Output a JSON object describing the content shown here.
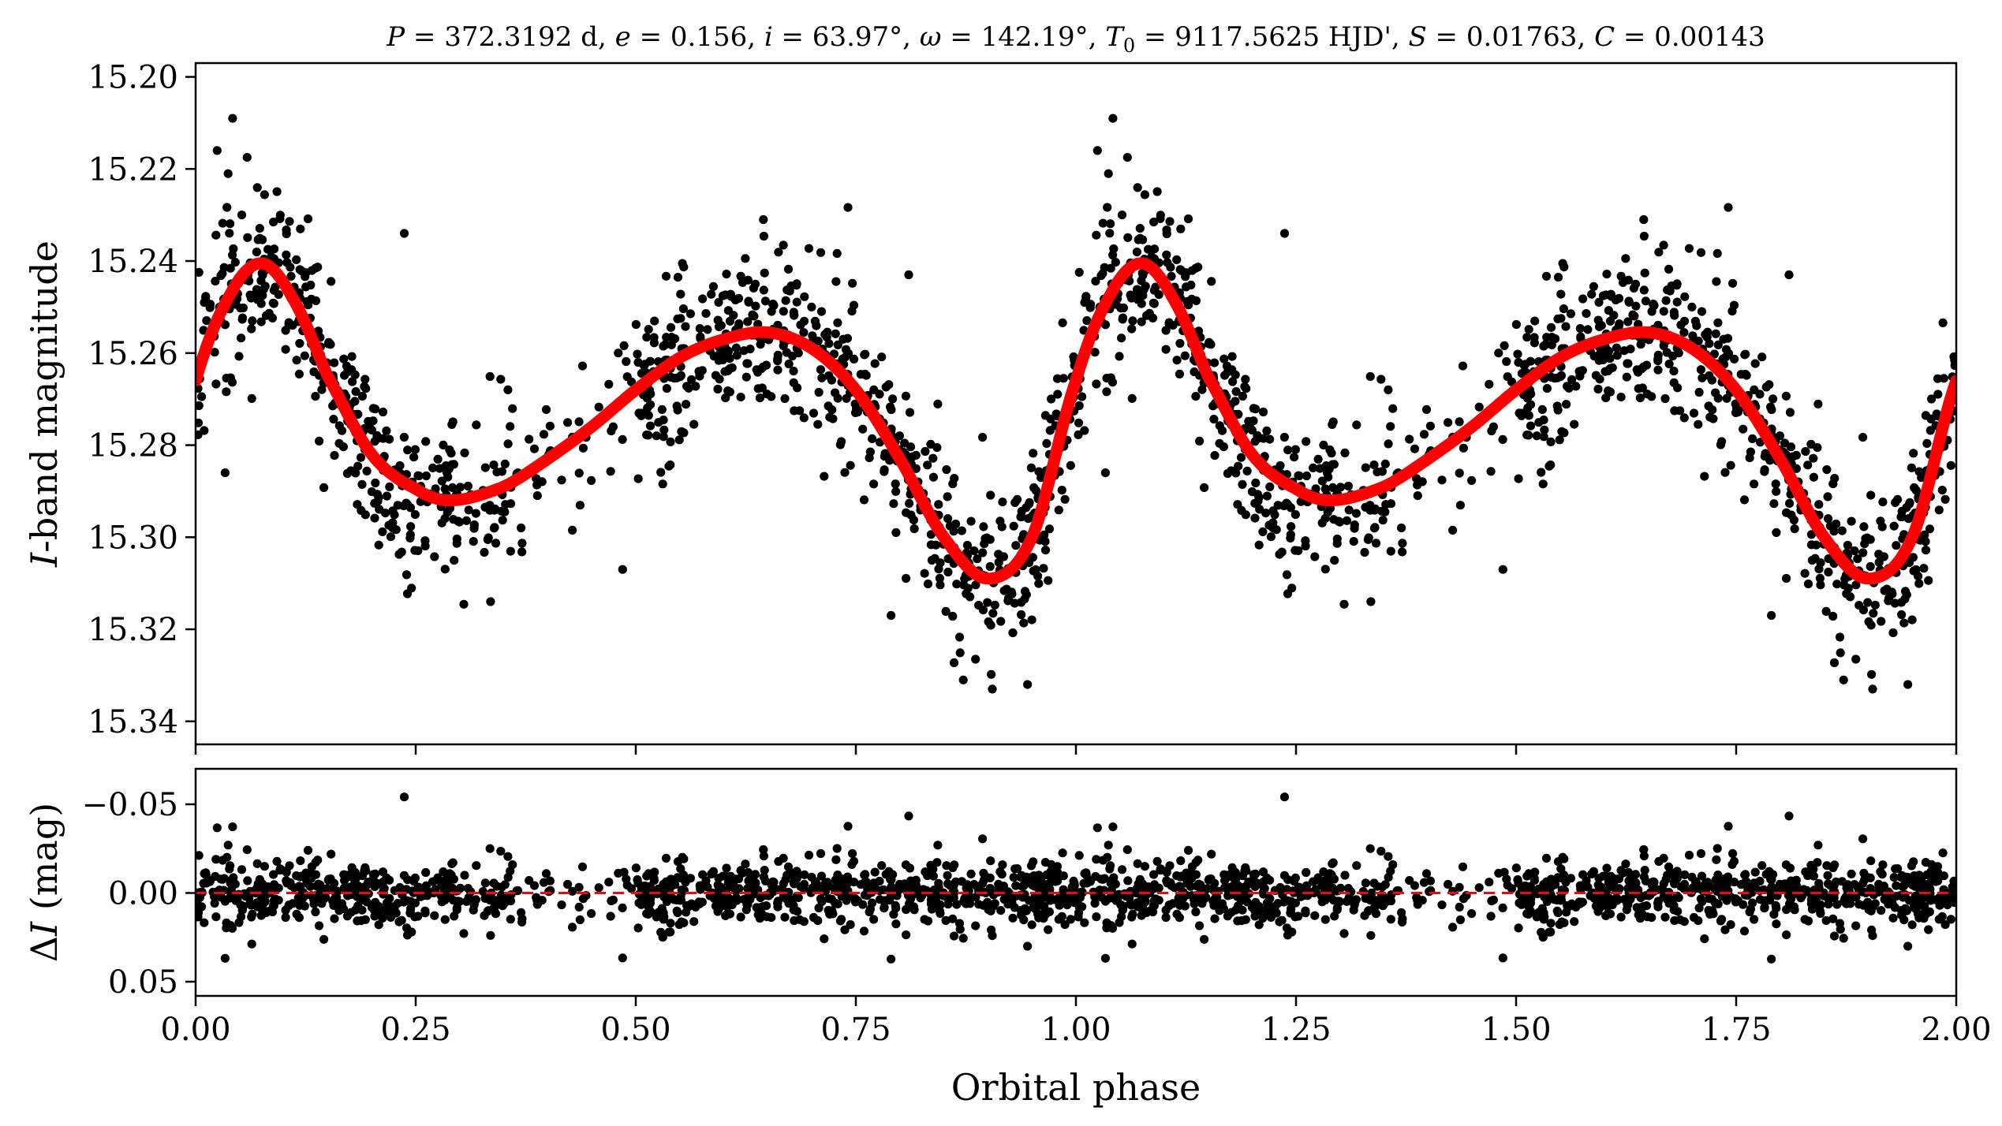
{
  "chart_data": [
    {
      "panel": "top",
      "type": "scatter",
      "title": "P = 372.3192 d, e = 0.156, i = 63.97°, ω = 142.19°, T0 = 9117.5625 HJD', S = 0.01763, C = 0.00143",
      "title_parts": [
        "P",
        " = 372.3192 d, ",
        "e",
        " = 0.156, ",
        "i",
        " = 63.97°, ",
        "ω",
        " = 142.19°, ",
        "T",
        "0",
        " = 9117.5625 HJD', ",
        "S",
        " = 0.01763, ",
        "C",
        " = 0.00143"
      ],
      "ylabel": "I-band magnitude",
      "ylabel_parts": [
        "I",
        "-band magnitude"
      ],
      "xlim": [
        0.0,
        2.0
      ],
      "ylim": [
        15.345,
        15.197
      ],
      "y_inverted": true,
      "yticks": [
        15.2,
        15.22,
        15.24,
        15.26,
        15.28,
        15.3,
        15.32,
        15.34
      ],
      "ytick_labels": [
        "15.20",
        "15.22",
        "15.24",
        "15.26",
        "15.28",
        "15.30",
        "15.32",
        "15.34"
      ],
      "grid": false,
      "series": [
        {
          "kind": "points",
          "color": "#000000",
          "model_phase": [
            0.0,
            0.04,
            0.075,
            0.11,
            0.15,
            0.2,
            0.25,
            0.29,
            0.35,
            0.4,
            0.45,
            0.5,
            0.55,
            0.6,
            0.65,
            0.7,
            0.75,
            0.8,
            0.85,
            0.9,
            0.95,
            1.0
          ],
          "model_mag": [
            15.266,
            15.247,
            15.2405,
            15.248,
            15.265,
            15.282,
            15.2895,
            15.292,
            15.289,
            15.283,
            15.276,
            15.268,
            15.261,
            15.257,
            15.2555,
            15.259,
            15.268,
            15.283,
            15.3,
            15.309,
            15.3,
            15.266
          ],
          "scatter_rms": 0.009,
          "n_per_cycle": 1050,
          "marked_points": [
            {
              "x": 0.042,
              "y": 15.209
            },
            {
              "x": 0.0245,
              "y": 15.216
            },
            {
              "x": 0.0335,
              "y": 15.286
            },
            {
              "x": 0.237,
              "y": 15.234
            },
            {
              "x": 0.335,
              "y": 15.314
            },
            {
              "x": 0.485,
              "y": 15.307
            },
            {
              "x": 0.645,
              "y": 15.231
            },
            {
              "x": 0.81,
              "y": 15.243
            },
            {
              "x": 0.79,
              "y": 15.317
            },
            {
              "x": 0.905,
              "y": 15.333
            },
            {
              "x": 0.945,
              "y": 15.332
            },
            {
              "x": 0.872,
              "y": 15.331
            }
          ]
        },
        {
          "kind": "model-line",
          "color": "#ff0000",
          "phase": [
            0.0,
            0.04,
            0.075,
            0.11,
            0.15,
            0.2,
            0.25,
            0.29,
            0.35,
            0.4,
            0.45,
            0.5,
            0.55,
            0.6,
            0.65,
            0.7,
            0.75,
            0.8,
            0.85,
            0.9,
            0.95,
            1.0
          ],
          "mag": [
            15.266,
            15.247,
            15.2405,
            15.248,
            15.265,
            15.282,
            15.2895,
            15.292,
            15.289,
            15.283,
            15.276,
            15.268,
            15.261,
            15.257,
            15.2555,
            15.259,
            15.268,
            15.283,
            15.3,
            15.309,
            15.3,
            15.266
          ]
        }
      ]
    },
    {
      "panel": "bottom",
      "type": "scatter",
      "ylabel": "ΔI (mag)",
      "ylabel_parts": [
        "Δ",
        "I",
        " (mag)"
      ],
      "xlabel": "Orbital phase",
      "xlim": [
        0.0,
        2.0
      ],
      "ylim": [
        0.058,
        -0.07
      ],
      "y_inverted": true,
      "yticks": [
        -0.05,
        0.0,
        0.05
      ],
      "ytick_labels": [
        "−0.05",
        "0.00",
        "0.05"
      ],
      "xticks": [
        0.0,
        0.25,
        0.5,
        0.75,
        1.0,
        1.25,
        1.5,
        1.75,
        2.0
      ],
      "xtick_labels": [
        "0.00",
        "0.25",
        "0.50",
        "0.75",
        "1.00",
        "1.25",
        "1.50",
        "1.75",
        "2.00"
      ],
      "grid": false,
      "series": [
        {
          "kind": "points",
          "color": "#000000",
          "scatter_rms": 0.01,
          "marked_points": [
            {
              "x": 0.237,
              "y": -0.055
            },
            {
              "x": 0.81,
              "y": -0.042
            },
            {
              "x": 1.237,
              "y": -0.055
            },
            {
              "x": 1.81,
              "y": -0.042
            },
            {
              "x": 0.045,
              "y": -0.038
            },
            {
              "x": 0.485,
              "y": 0.038
            },
            {
              "x": 0.79,
              "y": 0.041
            },
            {
              "x": 0.018,
              "y": 0.04
            },
            {
              "x": 1.79,
              "y": 0.041
            }
          ]
        },
        {
          "kind": "reference-line",
          "y": 0.0,
          "style": "dashed",
          "color": "#ff0000"
        }
      ]
    }
  ]
}
